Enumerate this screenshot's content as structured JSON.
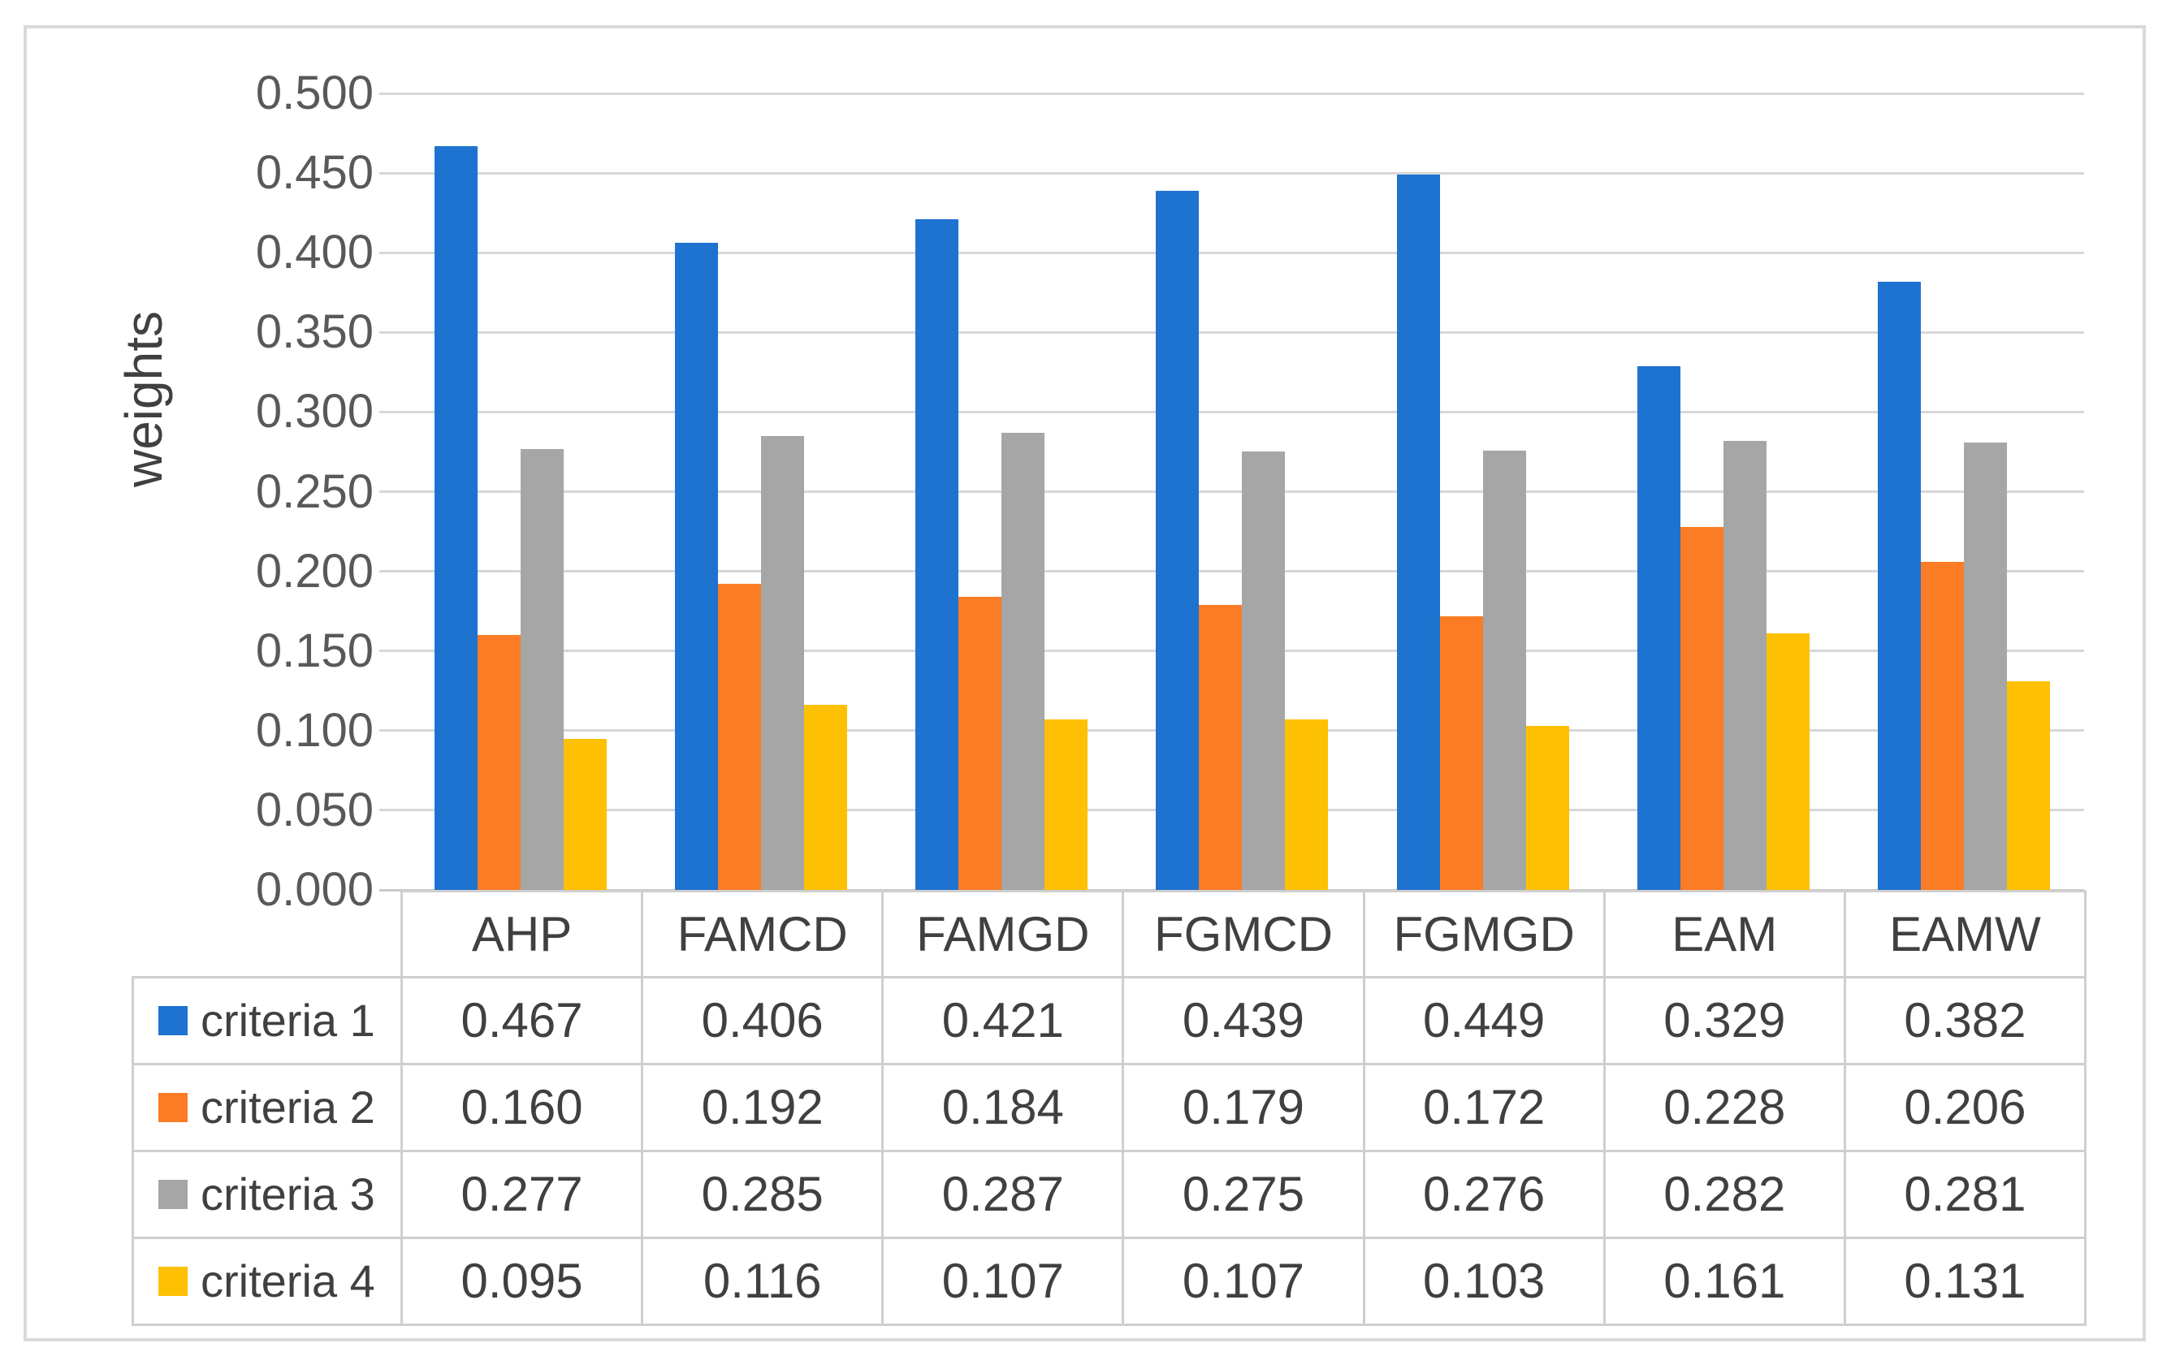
{
  "frame": {
    "border_color": "#d9d9d9"
  },
  "chart_data": {
    "type": "bar",
    "title": "",
    "xlabel": "",
    "ylabel": "weights",
    "categories": [
      "AHP",
      "FAMCD",
      "FAMGD",
      "FGMCD",
      "FGMGD",
      "EAM",
      "EAMW"
    ],
    "series": [
      {
        "name": "criteria 1",
        "color": "#1e72d0",
        "values": [
          0.467,
          0.406,
          0.421,
          0.439,
          0.449,
          0.329,
          0.382
        ]
      },
      {
        "name": "criteria 2",
        "color": "#fb7c24",
        "values": [
          0.16,
          0.192,
          0.184,
          0.179,
          0.172,
          0.228,
          0.206
        ]
      },
      {
        "name": "criteria 3",
        "color": "#a6a6a6",
        "values": [
          0.277,
          0.285,
          0.287,
          0.275,
          0.276,
          0.282,
          0.281
        ]
      },
      {
        "name": "criteria 4",
        "color": "#fec002",
        "values": [
          0.095,
          0.116,
          0.107,
          0.107,
          0.103,
          0.161,
          0.131
        ]
      }
    ],
    "ylim": [
      0,
      0.5
    ],
    "ytick_step": 0.05,
    "ytick_labels": [
      "0.000",
      "0.050",
      "0.100",
      "0.150",
      "0.200",
      "0.250",
      "0.300",
      "0.350",
      "0.400",
      "0.450",
      "0.500"
    ],
    "grid": true,
    "legend_position": "table-left",
    "value_format_decimals": 3,
    "colors": {
      "tick_text": "#595959",
      "table_text": "#404040",
      "gridline": "#d7d7d7",
      "axis_line": "#c9c9c9",
      "table_border": "#cfcfcf"
    }
  }
}
